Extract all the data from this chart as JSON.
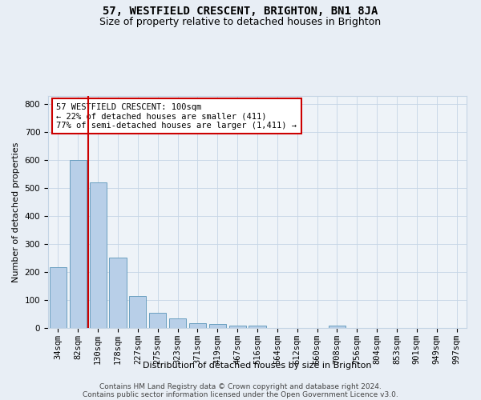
{
  "title": "57, WESTFIELD CRESCENT, BRIGHTON, BN1 8JA",
  "subtitle": "Size of property relative to detached houses in Brighton",
  "xlabel": "Distribution of detached houses by size in Brighton",
  "ylabel": "Number of detached properties",
  "footer_line1": "Contains HM Land Registry data © Crown copyright and database right 2024.",
  "footer_line2": "Contains public sector information licensed under the Open Government Licence v3.0.",
  "bar_labels": [
    "34sqm",
    "82sqm",
    "130sqm",
    "178sqm",
    "227sqm",
    "275sqm",
    "323sqm",
    "371sqm",
    "419sqm",
    "467sqm",
    "516sqm",
    "564sqm",
    "612sqm",
    "660sqm",
    "708sqm",
    "756sqm",
    "804sqm",
    "853sqm",
    "901sqm",
    "949sqm",
    "997sqm"
  ],
  "bar_values": [
    218,
    600,
    522,
    253,
    115,
    55,
    33,
    18,
    15,
    10,
    8,
    0,
    0,
    0,
    10,
    0,
    0,
    0,
    0,
    0,
    0
  ],
  "bar_color": "#b8cfe8",
  "bar_edge_color": "#6a9fc0",
  "ylim": [
    0,
    830
  ],
  "yticks": [
    0,
    100,
    200,
    300,
    400,
    500,
    600,
    700,
    800
  ],
  "property_line_color": "#cc0000",
  "annotation_box_text": "57 WESTFIELD CRESCENT: 100sqm\n← 22% of detached houses are smaller (411)\n77% of semi-detached houses are larger (1,411) →",
  "annotation_box_color": "#cc0000",
  "bg_color": "#e8eef5",
  "plot_bg_color": "#eef3f8",
  "grid_color": "#c5d5e5",
  "title_fontsize": 10,
  "subtitle_fontsize": 9,
  "axis_label_fontsize": 8,
  "tick_fontsize": 7.5,
  "annotation_fontsize": 7.5,
  "footer_fontsize": 6.5
}
